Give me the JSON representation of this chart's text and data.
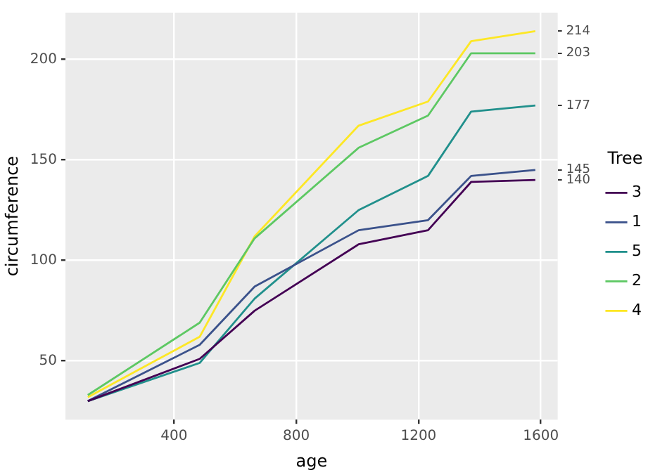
{
  "chart_data": {
    "type": "line",
    "xlabel": "age",
    "ylabel": "circumference",
    "legend_title": "Tree",
    "legend": "right",
    "grid": true,
    "marker": "none",
    "line_style": "solid",
    "x": [
      118,
      484,
      664,
      1004,
      1231,
      1372,
      1582
    ],
    "xlim": [
      44.8,
      1655.2
    ],
    "xticks": [
      400,
      800,
      1200,
      1600
    ],
    "ylim": [
      20.8,
      223.2
    ],
    "yticks": [
      50,
      100,
      150,
      200
    ],
    "y2lim": [
      20.8,
      223.2
    ],
    "y2ticks": [
      140,
      145,
      177,
      203,
      214
    ],
    "series": [
      {
        "name": "3",
        "color": "#440154",
        "values": [
          30,
          51,
          75,
          108,
          115,
          139,
          140
        ]
      },
      {
        "name": "1",
        "color": "#3b528b",
        "values": [
          30,
          58,
          87,
          115,
          120,
          142,
          145
        ]
      },
      {
        "name": "5",
        "color": "#21908c",
        "values": [
          30,
          49,
          81,
          125,
          142,
          174,
          177
        ]
      },
      {
        "name": "2",
        "color": "#5dc863",
        "values": [
          33,
          69,
          111,
          156,
          172,
          203,
          203
        ]
      },
      {
        "name": "4",
        "color": "#fde725",
        "values": [
          32,
          62,
          112,
          167,
          179,
          209,
          214
        ]
      }
    ]
  }
}
